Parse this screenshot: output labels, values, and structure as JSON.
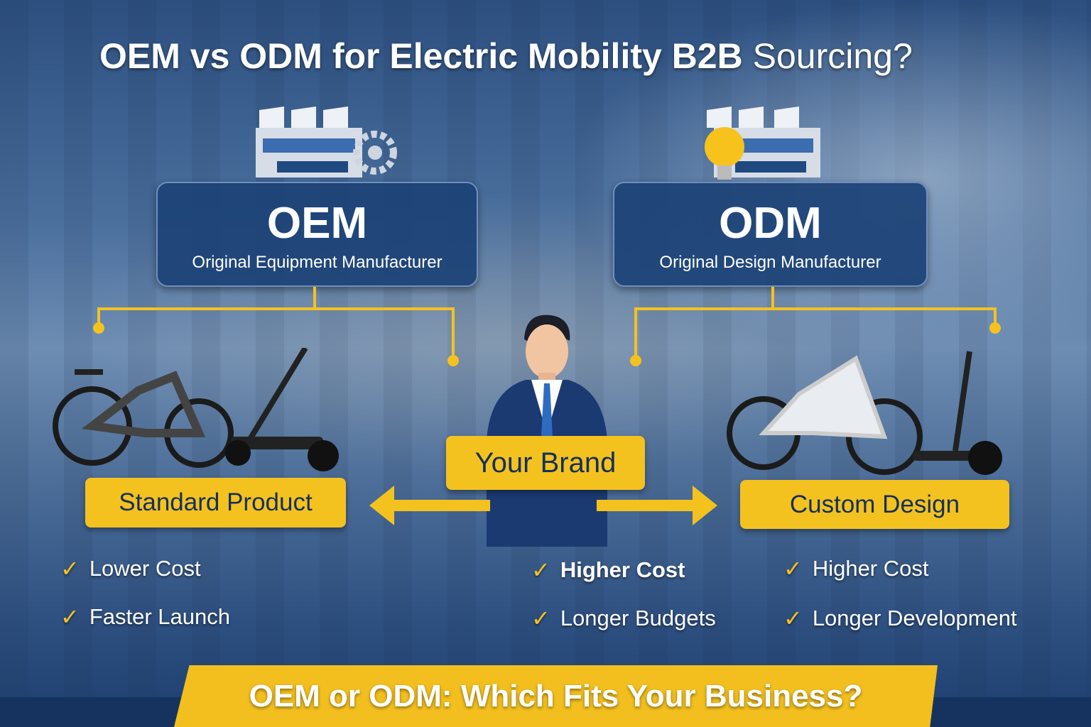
{
  "title": {
    "bold": "OEM vs ODM for Electric Mobility B2B",
    "light": "Sourcing?"
  },
  "oem": {
    "acronym": "OEM",
    "full": "Original Equipment Manufacturer",
    "label": "Standard Product",
    "points": [
      "Lower Cost",
      "Faster Launch"
    ]
  },
  "odm": {
    "acronym": "ODM",
    "full": "Original Design Manufacturer",
    "label": "Custom Design",
    "points": [
      "Higher Cost",
      "Longer Development"
    ]
  },
  "center": {
    "label": "Your Brand",
    "points": [
      "Higher Cost",
      "Longer Budgets"
    ]
  },
  "banner": "OEM or ODM: Which Fits Your Business?",
  "colors": {
    "accent": "#f4c21f",
    "box": "#1c4276",
    "text_dark": "#14305c"
  },
  "icons": {
    "check": "✓"
  }
}
